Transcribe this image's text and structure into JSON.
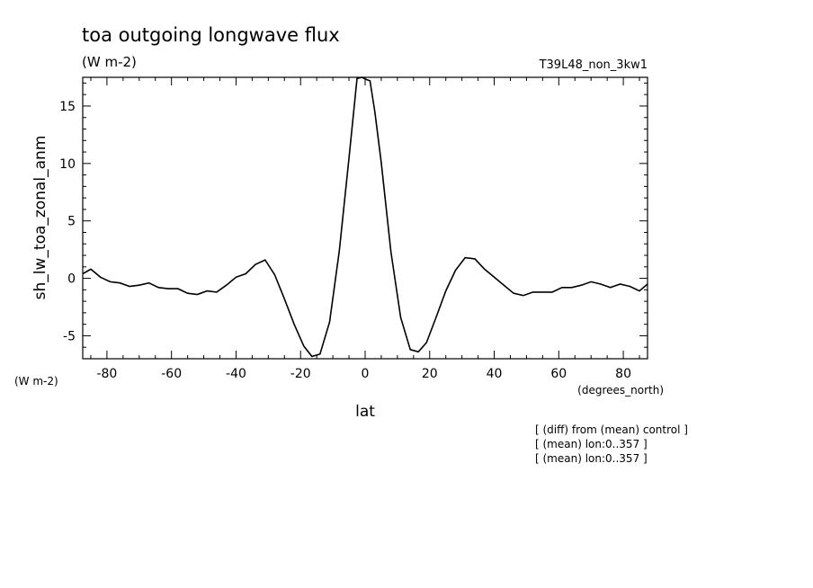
{
  "chart_data": {
    "type": "line",
    "title": "toa outgoing longwave flux",
    "subtitle": "(W m-2)",
    "run_label": "T39L48_non_3kw1",
    "xlabel": "lat",
    "x_units": "(degrees_north)",
    "ylabel": "sh_lw_toa_zonal_anm",
    "y_units": "(W m-2)",
    "xlim": [
      -87.5,
      87.5
    ],
    "ylim": [
      -7,
      17.5
    ],
    "x_ticks": [
      -80,
      -60,
      -40,
      -20,
      0,
      20,
      40,
      60,
      80
    ],
    "x_tick_labels": [
      "-80",
      "-60",
      "-40",
      "-20",
      "0",
      "20",
      "40",
      "60",
      "80"
    ],
    "y_ticks": [
      -5,
      0,
      5,
      10,
      15
    ],
    "y_tick_labels": [
      "-5",
      "0",
      "5",
      "10",
      "15"
    ],
    "grid": false,
    "notes": [
      "[ (diff) from (mean) control ]",
      "[ (mean) lon:0..357 ]",
      "[ (mean) lon:0..357 ]"
    ],
    "series": [
      {
        "x": [
          -87.5,
          -85,
          -82,
          -79,
          -76,
          -73,
          -70,
          -67,
          -64,
          -61,
          -58,
          -55,
          -52,
          -49,
          -46,
          -43,
          -40,
          -37,
          -34,
          -31,
          -28,
          -25,
          -22,
          -19,
          -16.5,
          -14,
          -11,
          -8,
          -5,
          -2.5,
          -1,
          0.5,
          1.5,
          3,
          5,
          8,
          11,
          14,
          16.5,
          19,
          22,
          25,
          28,
          31,
          34,
          37,
          40,
          43,
          46,
          49,
          52,
          55,
          58,
          61,
          64,
          67,
          70,
          73,
          76,
          79,
          82,
          85,
          87.5
        ],
        "y": [
          0.4,
          0.8,
          0.1,
          -0.3,
          -0.4,
          -0.7,
          -0.6,
          -0.4,
          -0.8,
          -0.9,
          -0.9,
          -1.3,
          -1.4,
          -1.1,
          -1.2,
          -0.6,
          0.1,
          0.4,
          1.2,
          1.6,
          0.3,
          -1.8,
          -4.0,
          -5.9,
          -6.8,
          -6.6,
          -3.8,
          2.4,
          10.5,
          17.4,
          17.6,
          17.3,
          17.2,
          14.5,
          10.1,
          2.3,
          -3.4,
          -6.2,
          -6.4,
          -5.6,
          -3.4,
          -1.1,
          0.7,
          1.8,
          1.7,
          0.8,
          0.1,
          -0.6,
          -1.3,
          -1.5,
          -1.2,
          -1.2,
          -1.2,
          -0.8,
          -0.8,
          -0.6,
          -0.3,
          -0.5,
          -0.8,
          -0.5,
          -0.7,
          -1.1,
          -0.5
        ]
      }
    ]
  }
}
